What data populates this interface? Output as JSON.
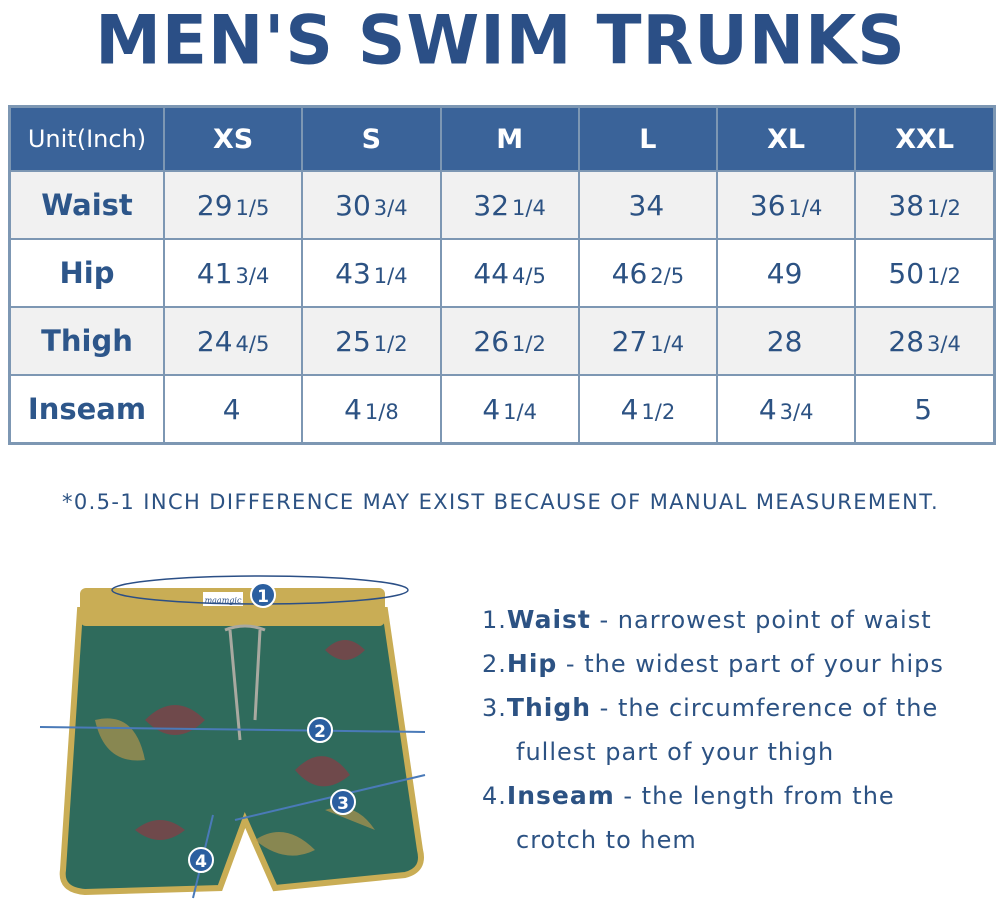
{
  "title": "MEN'S SWIM TRUNKS",
  "table": {
    "unit_header": "Unit(Inch)",
    "sizes": [
      "XS",
      "S",
      "M",
      "L",
      "XL",
      "XXL"
    ],
    "rows": [
      {
        "label": "Waist",
        "values": [
          {
            "whole": "29",
            "frac": "1/5"
          },
          {
            "whole": "30",
            "frac": "3/4"
          },
          {
            "whole": "32",
            "frac": "1/4"
          },
          {
            "whole": "34",
            "frac": ""
          },
          {
            "whole": "36",
            "frac": "1/4"
          },
          {
            "whole": "38",
            "frac": "1/2"
          }
        ]
      },
      {
        "label": "Hip",
        "values": [
          {
            "whole": "41",
            "frac": "3/4"
          },
          {
            "whole": "43",
            "frac": "1/4"
          },
          {
            "whole": "44",
            "frac": "4/5"
          },
          {
            "whole": "46",
            "frac": "2/5"
          },
          {
            "whole": "49",
            "frac": ""
          },
          {
            "whole": "50",
            "frac": "1/2"
          }
        ]
      },
      {
        "label": "Thigh",
        "values": [
          {
            "whole": "24",
            "frac": "4/5"
          },
          {
            "whole": "25",
            "frac": "1/2"
          },
          {
            "whole": "26",
            "frac": "1/2"
          },
          {
            "whole": "27",
            "frac": "1/4"
          },
          {
            "whole": "28",
            "frac": ""
          },
          {
            "whole": "28",
            "frac": "3/4"
          }
        ]
      },
      {
        "label": "Inseam",
        "values": [
          {
            "whole": "4",
            "frac": ""
          },
          {
            "whole": "4",
            "frac": "1/8"
          },
          {
            "whole": "4",
            "frac": "1/4"
          },
          {
            "whole": "4",
            "frac": "1/2"
          },
          {
            "whole": "4",
            "frac": "3/4"
          },
          {
            "whole": "5",
            "frac": ""
          }
        ]
      }
    ]
  },
  "note": "*0.5-1 INCH DIFFERENCE MAY EXIST BECAUSE OF MANUAL MEASUREMENT.",
  "image": {
    "brand_tag": "maamgic",
    "markers": [
      "1",
      "2",
      "3",
      "4"
    ]
  },
  "legend": [
    {
      "num": "1.",
      "term": "Waist",
      "desc": " - narrowest point of waist"
    },
    {
      "num": "2.",
      "term": "Hip",
      "desc": " - the widest part of your hips"
    },
    {
      "num": "3.",
      "term": "Thigh",
      "desc": " - the circumference of the",
      "cont": "fullest part of your thigh"
    },
    {
      "num": "4.",
      "term": "Inseam",
      "desc": " - the length from the",
      "cont": "crotch to hem"
    }
  ],
  "colors": {
    "brand_blue": "#2b4f86",
    "header_blue": "#3a6399",
    "border": "#7d97b3",
    "shorts_green": "#2f6b5c",
    "trim_gold": "#c9ad55"
  }
}
